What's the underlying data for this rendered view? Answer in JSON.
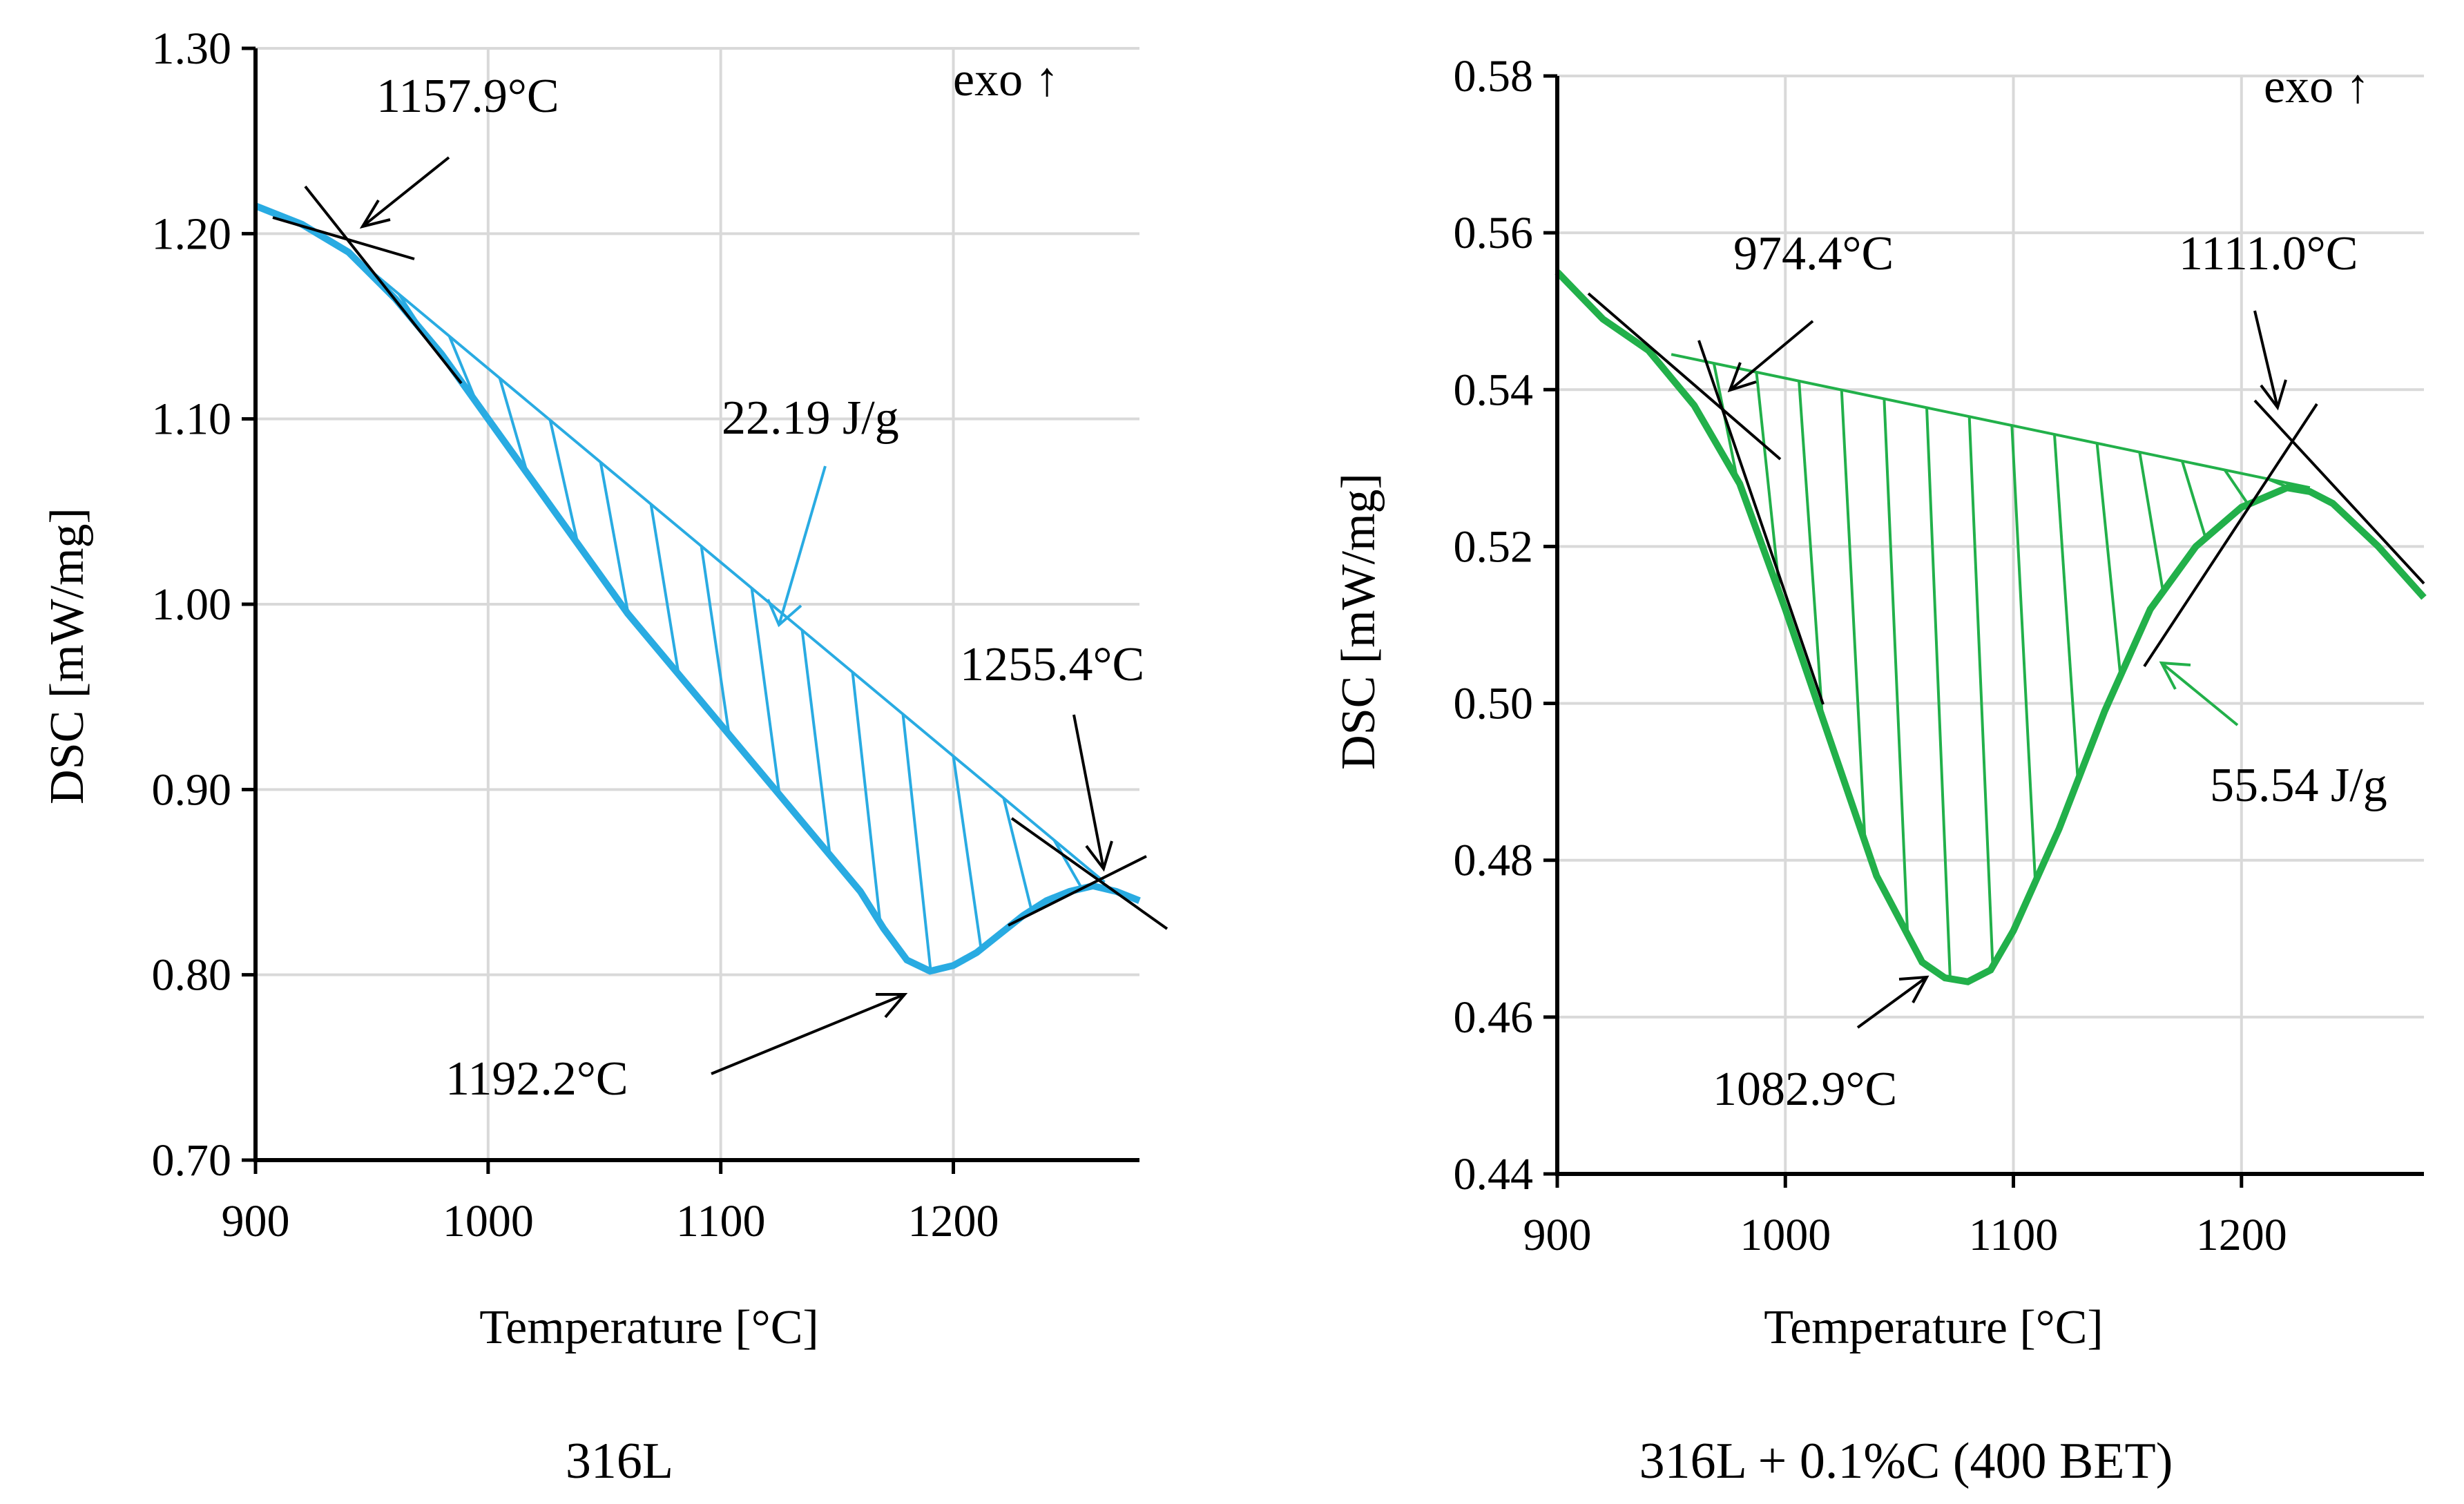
{
  "chart_data": [
    {
      "type": "line",
      "caption": "316L",
      "xlabel": "Temperature [°C]",
      "ylabel": "DSC [mW/mg]",
      "xlim": [
        900,
        1280
      ],
      "ylim": [
        0.7,
        1.3
      ],
      "xticks": [
        "900",
        "1000",
        "1100",
        "1200"
      ],
      "yticks": [
        "0.70",
        "0.80",
        "0.90",
        "1.00",
        "1.10",
        "1.20",
        "1.30"
      ],
      "grid": true,
      "exo_label": "exo ↑",
      "color": "#29abe2",
      "series": [
        {
          "x": [
            900,
            920,
            940,
            960,
            980,
            1000,
            1020,
            1040,
            1060,
            1080,
            1100,
            1120,
            1140,
            1160,
            1170,
            1180,
            1190,
            1200,
            1210,
            1220,
            1230,
            1240,
            1250,
            1260,
            1270,
            1280
          ],
          "y": [
            1.215,
            1.205,
            1.19,
            1.165,
            1.135,
            1.1,
            1.065,
            1.03,
            0.995,
            0.965,
            0.935,
            0.905,
            0.875,
            0.845,
            0.825,
            0.808,
            0.802,
            0.805,
            0.812,
            0.822,
            0.832,
            0.84,
            0.845,
            0.848,
            0.845,
            0.84
          ]
        }
      ],
      "baseline": {
        "x": [
          940,
          1265
        ],
        "y": [
          1.19,
          0.85
        ]
      },
      "annotations": [
        {
          "label": "1157.9°C"
        },
        {
          "label": "22.19 J/g"
        },
        {
          "label": "1255.4°C"
        },
        {
          "label": "1192.2°C"
        }
      ]
    },
    {
      "type": "line",
      "caption": "316L + 0.1%C (400 BET)",
      "xlabel": "Temperature [°C]",
      "ylabel": "DSC [mW/mg]",
      "xlim": [
        900,
        1280
      ],
      "ylim": [
        0.44,
        0.58
      ],
      "xticks": [
        "900",
        "1000",
        "1100",
        "1200"
      ],
      "yticks": [
        "0.44",
        "0.46",
        "0.48",
        "0.50",
        "0.52",
        "0.54",
        "0.56",
        "0.58"
      ],
      "grid": true,
      "exo_label": "exo ↑",
      "color": "#22b04a",
      "series": [
        {
          "x": [
            900,
            920,
            940,
            960,
            980,
            1000,
            1020,
            1040,
            1060,
            1070,
            1080,
            1090,
            1100,
            1120,
            1140,
            1160,
            1180,
            1200,
            1220,
            1230,
            1240,
            1260,
            1280
          ],
          "y": [
            0.555,
            0.549,
            0.545,
            0.538,
            0.528,
            0.512,
            0.495,
            0.478,
            0.467,
            0.465,
            0.4645,
            0.466,
            0.471,
            0.484,
            0.499,
            0.512,
            0.52,
            0.525,
            0.5275,
            0.527,
            0.5255,
            0.52,
            0.5135
          ]
        }
      ],
      "baseline": {
        "x": [
          950,
          1230
        ],
        "y": [
          0.5445,
          0.5275
        ]
      },
      "annotations": [
        {
          "label": "974.4°C"
        },
        {
          "label": "1111.0°C"
        },
        {
          "label": "55.54 J/g"
        },
        {
          "label": "1082.9°C"
        }
      ]
    }
  ]
}
